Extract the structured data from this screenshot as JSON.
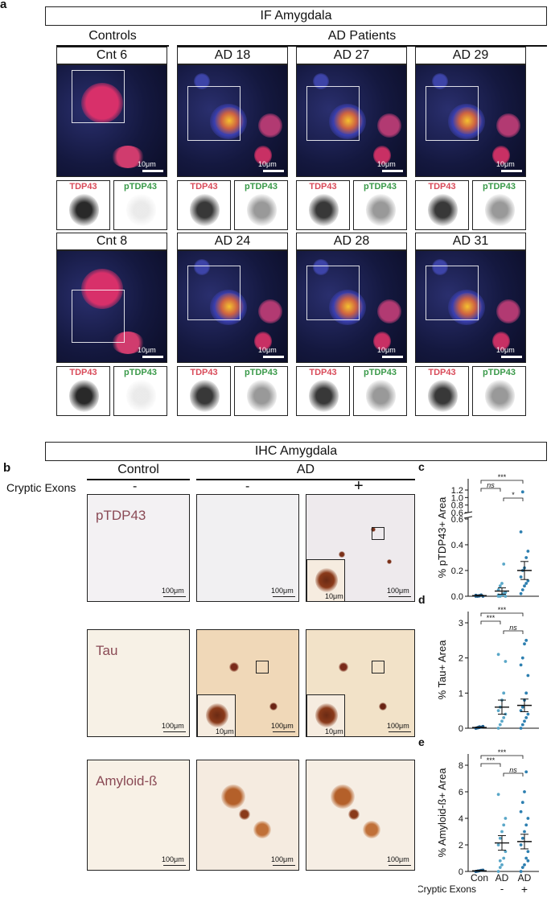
{
  "panel_a": {
    "letter": "a",
    "title": "IF Amygdala",
    "group_controls": "Controls",
    "group_ad": "AD Patients",
    "scale_label": "10μm",
    "channel_tdp43": "TDP43",
    "channel_ptdp43": "pTDP43",
    "samples": [
      "Cnt 6",
      "AD 18",
      "AD 27",
      "AD 29",
      "Cnt 8",
      "AD 24",
      "AD 28",
      "AD 31"
    ]
  },
  "panel_b": {
    "letter": "b",
    "title": "IHC Amygdala",
    "group_control": "Control",
    "group_ad": "AD",
    "cryptic_label": "Cryptic  Exons",
    "signs": [
      "-",
      "-",
      "+"
    ],
    "stains": [
      "pTDP43",
      "Tau",
      "Amyloid-ß"
    ],
    "scale_label": "100μm",
    "inset_scale_label": "10μm"
  },
  "xaxis": {
    "categories": [
      "Con",
      "AD",
      "AD"
    ],
    "cryptic_label": "Cryptic Exons",
    "signs": [
      "-",
      "+"
    ]
  },
  "colors": {
    "control_points": "#1a5a8a",
    "ad_minus_points": "#5aa7c8",
    "ad_plus_points": "#2d7fb0"
  },
  "chart_data": [
    {
      "letter": "c",
      "type": "scatter",
      "ylabel": "% pTDP43+ Area",
      "yaxis_broken": true,
      "yticks_lower": [
        0.0,
        0.2,
        0.4,
        0.6
      ],
      "yticks_upper": [
        0.6,
        0.8,
        1.0,
        1.2
      ],
      "categories": [
        "Con",
        "AD -",
        "AD +"
      ],
      "points": [
        [
          0.0,
          0.0,
          0.005,
          0.01,
          0.0,
          0.008,
          0.003,
          0.002
        ],
        [
          0.0,
          0.0,
          0.01,
          0.02,
          0.03,
          0.05,
          0.08,
          0.1,
          0.25,
          0.0,
          0.01
        ],
        [
          0.02,
          0.05,
          0.08,
          0.1,
          0.12,
          0.15,
          0.2,
          0.22,
          0.3,
          0.35,
          0.5,
          1.15
        ]
      ],
      "means": [
        0.005,
        0.04,
        0.2
      ],
      "sem": [
        0.003,
        0.025,
        0.07
      ],
      "significance": [
        {
          "from": 0,
          "to": 1,
          "label": "ns"
        },
        {
          "from": 0,
          "to": 2,
          "label": "***"
        },
        {
          "from": 1,
          "to": 2,
          "label": "*"
        }
      ]
    },
    {
      "letter": "d",
      "type": "scatter",
      "ylabel": "% Tau+ Area",
      "yticks": [
        0,
        1,
        2,
        3
      ],
      "categories": [
        "Con",
        "AD -",
        "AD +"
      ],
      "points": [
        [
          0.0,
          0.01,
          0.02,
          0.03,
          0.05,
          0.0,
          0.02,
          0.04
        ],
        [
          0.0,
          0.1,
          0.2,
          0.3,
          0.4,
          0.5,
          0.6,
          0.8,
          1.0,
          1.9,
          2.1
        ],
        [
          0.0,
          0.1,
          0.2,
          0.3,
          0.4,
          0.5,
          0.6,
          0.8,
          1.0,
          1.5,
          1.8,
          2.0,
          2.4,
          2.5
        ]
      ],
      "means": [
        0.02,
        0.6,
        0.65
      ],
      "sem": [
        0.01,
        0.2,
        0.18
      ],
      "significance": [
        {
          "from": 0,
          "to": 1,
          "label": "***"
        },
        {
          "from": 0,
          "to": 2,
          "label": "***"
        },
        {
          "from": 1,
          "to": 2,
          "label": "ns"
        }
      ]
    },
    {
      "letter": "e",
      "type": "scatter",
      "ylabel": "% Amyloid-ß+ Area",
      "yticks": [
        0,
        2,
        4,
        6,
        8
      ],
      "categories": [
        "Con",
        "AD -",
        "AD +"
      ],
      "points": [
        [
          0.0,
          0.02,
          0.05,
          0.08,
          0.1,
          0.0,
          0.03
        ],
        [
          0.0,
          0.3,
          0.5,
          1.0,
          1.5,
          2.0,
          2.5,
          3.0,
          3.5,
          4.0,
          5.8,
          0.8
        ],
        [
          0.0,
          0.3,
          0.5,
          1.0,
          1.5,
          2.0,
          2.5,
          3.0,
          3.5,
          4.0,
          4.5,
          5.2,
          6.0,
          7.5,
          0.8
        ]
      ],
      "means": [
        0.05,
        2.15,
        2.25
      ],
      "sem": [
        0.03,
        0.55,
        0.55
      ],
      "significance": [
        {
          "from": 0,
          "to": 1,
          "label": "***"
        },
        {
          "from": 0,
          "to": 2,
          "label": "***"
        },
        {
          "from": 1,
          "to": 2,
          "label": "ns"
        }
      ]
    }
  ]
}
